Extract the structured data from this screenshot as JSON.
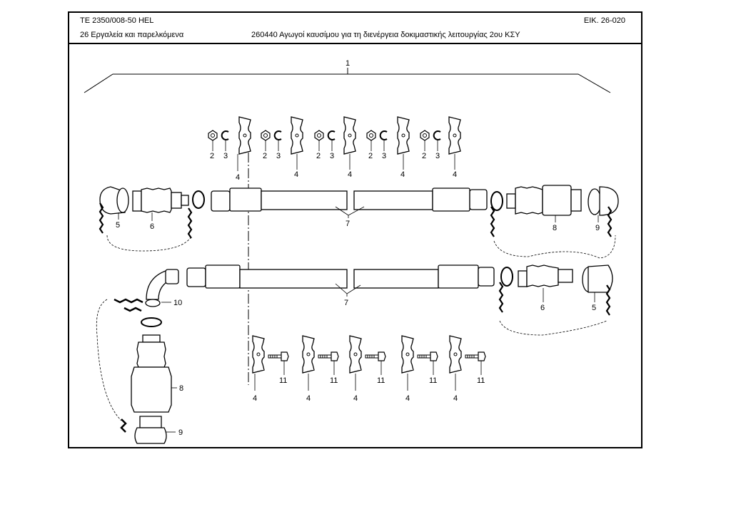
{
  "header": {
    "doc_code": "ΤΕ  2350/008-50 HEL",
    "figure_ref": "ΕΙΚ. 26-020",
    "chapter": "26 Εργαλεία και παρελκόμενα",
    "caption": "260440 Αγωγοί καυσίμου για τη διενέργεια δοκιμαστικής λειτουργίας 2ου ΚΣΥ"
  },
  "callouts": {
    "assembly": "1",
    "nut": "2",
    "washer": "3",
    "clamp": "4",
    "dust_cap": "5",
    "coupling_nipple": "6",
    "hose": "7",
    "coupling_socket": "8",
    "plug": "9",
    "elbow": "10",
    "screw": "11"
  }
}
